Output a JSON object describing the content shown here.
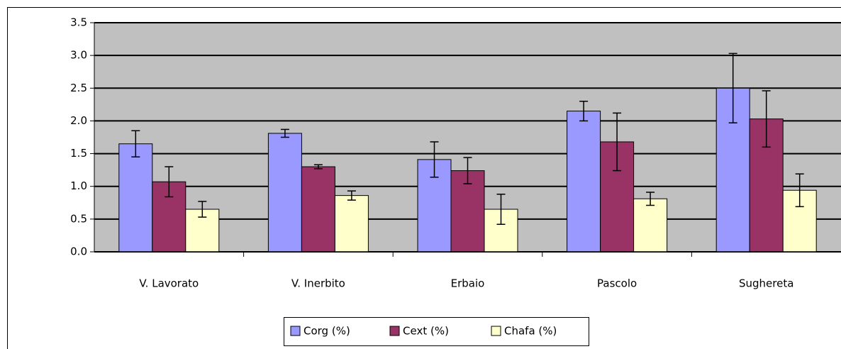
{
  "chart_data": {
    "type": "bar",
    "categories": [
      "V. Lavorato",
      "V. Inerbito",
      "Erbaio",
      "Pascolo",
      "Sughereta"
    ],
    "series": [
      {
        "name": "Corg (%)",
        "color": "#9999ff",
        "values": [
          1.65,
          1.81,
          1.41,
          2.15,
          2.5
        ],
        "errors": [
          0.2,
          0.06,
          0.27,
          0.15,
          0.53
        ]
      },
      {
        "name": "Cext (%)",
        "color": "#993366",
        "values": [
          1.07,
          1.3,
          1.24,
          1.68,
          2.03
        ],
        "errors": [
          0.23,
          0.03,
          0.2,
          0.44,
          0.43
        ]
      },
      {
        "name": "Chafa (%)",
        "color": "#ffffcc",
        "values": [
          0.65,
          0.86,
          0.65,
          0.81,
          0.94
        ],
        "errors": [
          0.12,
          0.07,
          0.23,
          0.1,
          0.25
        ]
      }
    ],
    "ylim": [
      0,
      3.5
    ],
    "yticks": [
      {
        "value": 0,
        "label": "0.0"
      },
      0.5,
      {
        "value": 1,
        "label": "1.0"
      },
      1.5,
      {
        "value": 2,
        "label": "2.0"
      },
      2.5,
      {
        "value": 3,
        "label": "3.0"
      },
      3.5
    ],
    "grid": true,
    "legend": "bottom"
  }
}
